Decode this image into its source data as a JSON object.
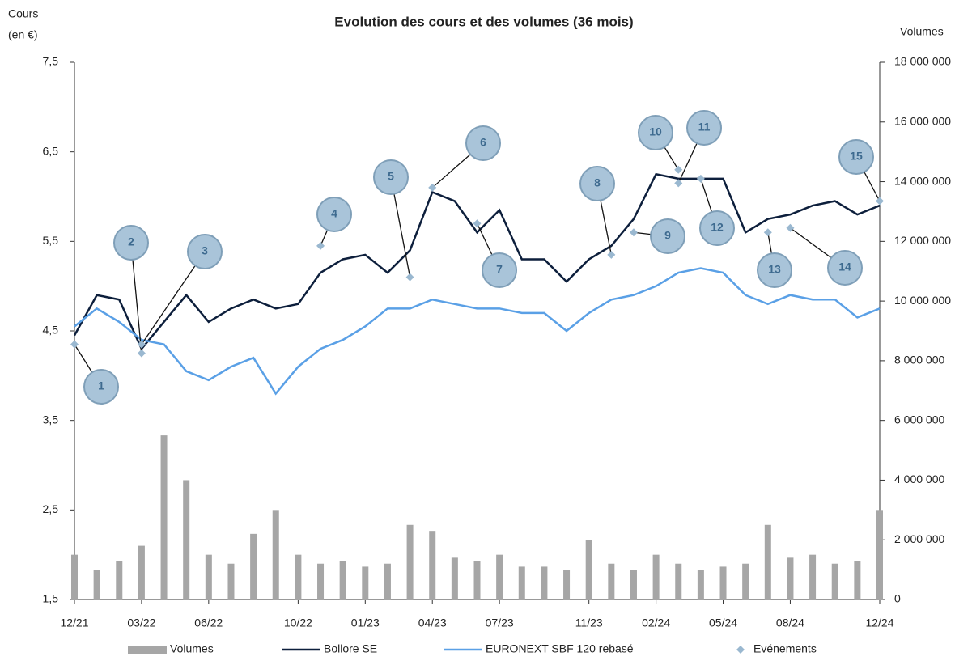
{
  "chart_data": {
    "type": "line",
    "title": "Evolution des cours et des volumes (36 mois)",
    "ylabel": [
      "Cours",
      "(en €)"
    ],
    "y2label": "Volumes",
    "x": [
      "12/21",
      "01/22",
      "02/22",
      "03/22",
      "04/22",
      "05/22",
      "06/22",
      "07/22",
      "08/22",
      "09/22",
      "10/22",
      "11/22",
      "12/22",
      "01/23",
      "02/23",
      "03/23",
      "04/23",
      "05/23",
      "06/23",
      "07/23",
      "08/23",
      "09/23",
      "10/23",
      "11/23",
      "12/23",
      "01/24",
      "02/24",
      "03/24",
      "04/24",
      "05/24",
      "06/24",
      "07/24",
      "08/24",
      "09/24",
      "10/24",
      "11/24",
      "12/24"
    ],
    "xticks": [
      "12/21",
      "03/22",
      "06/22",
      "10/22",
      "01/23",
      "04/23",
      "07/23",
      "11/23",
      "02/24",
      "05/24",
      "08/24",
      "12/24"
    ],
    "ylim": [
      1.5,
      7.5
    ],
    "yticks": [
      {
        "value": 1.5,
        "label": "1,5"
      },
      {
        "value": 2.5,
        "label": "2,5"
      },
      {
        "value": 3.5,
        "label": "3,5"
      },
      {
        "value": 4.5,
        "label": "4,5"
      },
      {
        "value": 5.5,
        "label": "5,5"
      },
      {
        "value": 6.5,
        "label": "6,5"
      },
      {
        "value": 7.5,
        "label": "7,5"
      }
    ],
    "y2lim": [
      0,
      18000000
    ],
    "y2ticks": [
      0,
      {
        "value": 2000000,
        "label": "2 000 000"
      },
      {
        "value": 4000000,
        "label": "4 000 000"
      },
      {
        "value": 6000000,
        "label": "6 000 000"
      },
      {
        "value": 8000000,
        "label": "8 000 000"
      },
      {
        "value": 10000000,
        "label": "10 000 000"
      },
      {
        "value": 12000000,
        "label": "12 000 000"
      },
      {
        "value": 14000000,
        "label": "14 000 000"
      },
      {
        "value": 16000000,
        "label": "16 000 000"
      },
      {
        "value": 18000000,
        "label": "18 000 000"
      }
    ],
    "series": [
      {
        "name": "Volumes",
        "type": "bar",
        "axis": "y2",
        "color": "#a6a6a6",
        "values": [
          1500000,
          1000000,
          1300000,
          1800000,
          5500000,
          4000000,
          1500000,
          1200000,
          2200000,
          3000000,
          1500000,
          1200000,
          1300000,
          1100000,
          1200000,
          2500000,
          2300000,
          1400000,
          1300000,
          1500000,
          1100000,
          1100000,
          1000000,
          2000000,
          1200000,
          1000000,
          1500000,
          1200000,
          1000000,
          1100000,
          1200000,
          2500000,
          1400000,
          1500000,
          1200000,
          1300000,
          3000000
        ]
      },
      {
        "name": "Bollore SE",
        "type": "line",
        "color": "#0d1f3c",
        "values": [
          4.45,
          4.9,
          4.85,
          4.3,
          4.6,
          4.9,
          4.6,
          4.75,
          4.85,
          4.75,
          4.8,
          5.15,
          5.3,
          5.35,
          5.15,
          5.4,
          6.05,
          5.95,
          5.6,
          5.85,
          5.3,
          5.3,
          5.05,
          5.3,
          5.45,
          5.75,
          6.25,
          6.2,
          6.2,
          6.2,
          5.6,
          5.75,
          5.8,
          5.9,
          5.95,
          5.8,
          5.9
        ]
      },
      {
        "name": "EURONEXT SBF 120 rebasé",
        "type": "line",
        "color": "#5aa0e6",
        "values": [
          4.55,
          4.75,
          4.6,
          4.4,
          4.35,
          4.05,
          3.95,
          4.1,
          4.2,
          3.8,
          4.1,
          4.3,
          4.4,
          4.55,
          4.75,
          4.75,
          4.85,
          4.8,
          4.75,
          4.75,
          4.7,
          4.7,
          4.5,
          4.7,
          4.85,
          4.9,
          5.0,
          5.15,
          5.2,
          5.15,
          4.9,
          4.8,
          4.9,
          4.85,
          4.85,
          4.65,
          4.75
        ]
      },
      {
        "name": "Evénements",
        "type": "scatter",
        "color": "#9ab8d0",
        "x": [
          "12/21",
          "03/22",
          "03/22",
          "11/22",
          "03/23",
          "04/23",
          "06/23",
          "12/23",
          "01/24",
          "03/24",
          "03/24",
          "04/24",
          "07/24",
          "08/24",
          "12/24"
        ],
        "values": [
          4.35,
          4.25,
          4.35,
          5.45,
          5.1,
          6.1,
          5.7,
          5.35,
          5.6,
          6.3,
          6.15,
          6.2,
          5.6,
          5.65,
          5.95
        ],
        "labels": [
          "1",
          "2",
          "3",
          "4",
          "5",
          "6",
          "7",
          "8",
          "9",
          "10",
          "11",
          "12",
          "13",
          "14",
          "15"
        ]
      }
    ]
  }
}
